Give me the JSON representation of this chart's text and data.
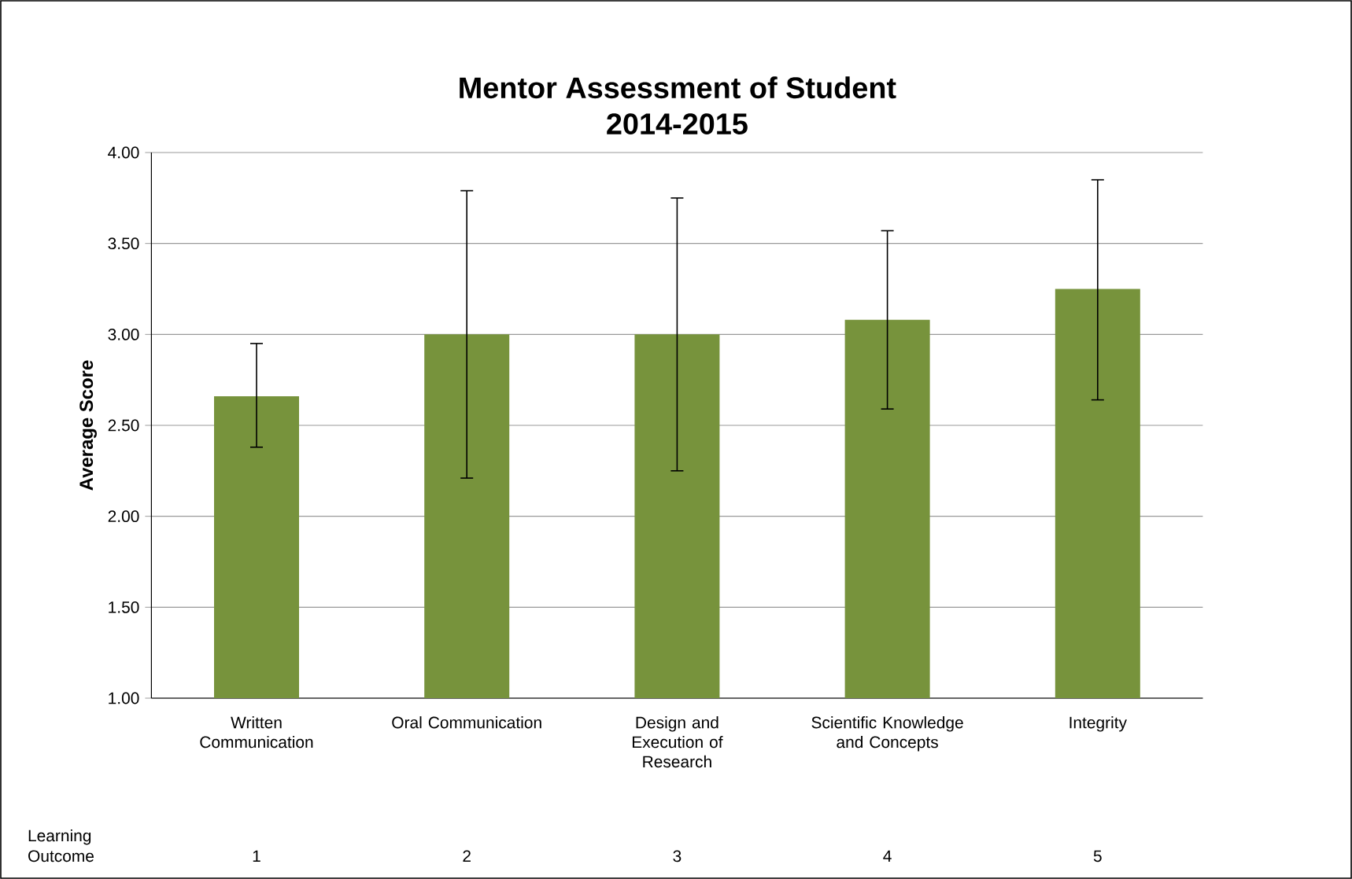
{
  "chart_data": {
    "type": "bar",
    "title": "Mentor Assessment of Student\n2014-2015",
    "ylabel": "Average Score",
    "xlabel": "Learning Outcome",
    "categories": [
      "Written\nCommunication",
      "Oral Communication",
      "Design and\nExecution of\nResearch",
      "Scientific Knowledge\nand Concepts",
      "Integrity"
    ],
    "values": [
      2.66,
      3.0,
      3.0,
      3.08,
      3.25
    ],
    "errors": [
      [
        2.38,
        2.95
      ],
      [
        2.21,
        3.79
      ],
      [
        2.25,
        3.75
      ],
      [
        2.59,
        3.57
      ],
      [
        2.64,
        3.85
      ]
    ],
    "color": "#77933c",
    "ylim": [
      1,
      4
    ],
    "yticks": [
      {
        "value": 1,
        "label": "1.00"
      },
      {
        "value": 1.5,
        "label": "1.50"
      },
      {
        "value": 2,
        "label": "2.00"
      },
      {
        "value": 2.5,
        "label": "2.50"
      },
      {
        "value": 3,
        "label": "3.00"
      },
      {
        "value": 3.5,
        "label": "3.50"
      },
      {
        "value": 4,
        "label": "4.00"
      }
    ],
    "grid": "y",
    "annotations": [
      "1",
      "2",
      "3",
      "4",
      "5"
    ]
  }
}
